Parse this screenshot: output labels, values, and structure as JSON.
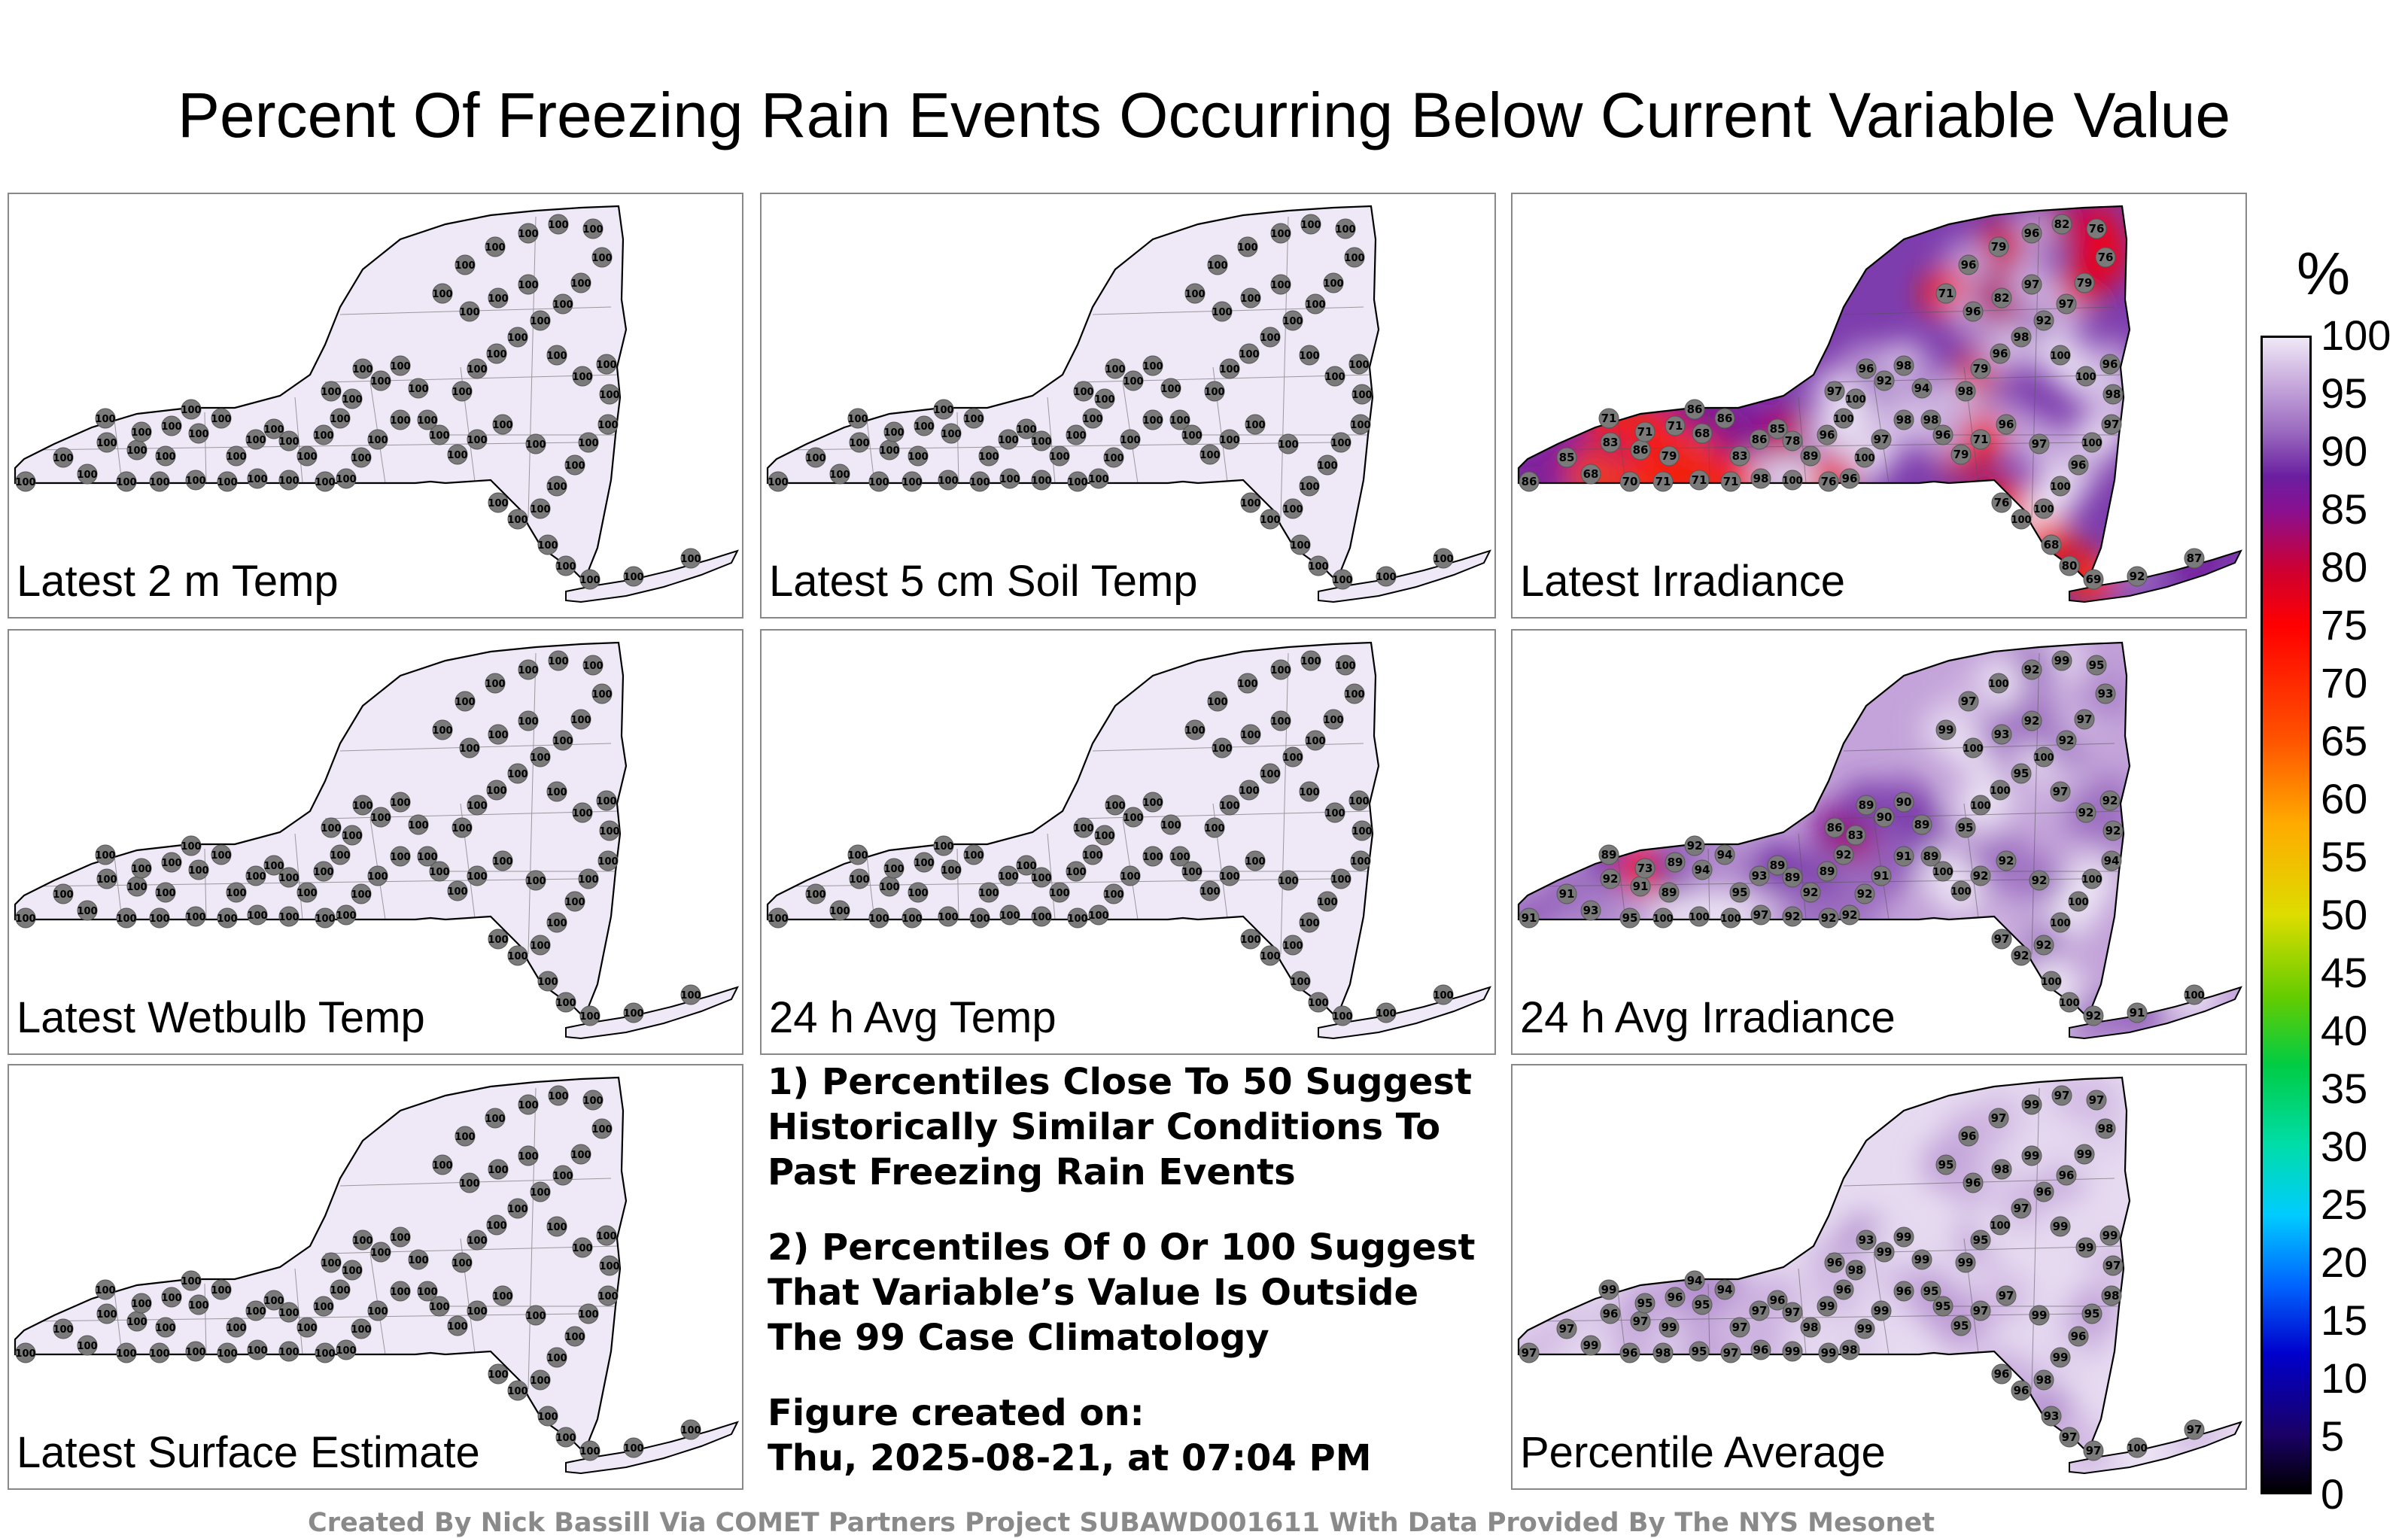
{
  "title": "Percent Of Freezing Rain Events Occurring Below Current Variable Value",
  "panels": [
    {
      "label": "Latest 2 m Temp",
      "shade": "uniform",
      "value": "100"
    },
    {
      "label": "Latest 5 cm Soil Temp",
      "shade": "uniform",
      "value": "100"
    },
    {
      "label": "Latest Irradiance",
      "shade": "irradiance",
      "values": [
        "86",
        "85",
        "83",
        "86",
        "79",
        "71",
        "71",
        "71",
        "68",
        "86",
        "86",
        "83",
        "86",
        "85",
        "78",
        "89",
        "96",
        "100",
        "97",
        "100",
        "96",
        "92",
        "98",
        "94",
        "98",
        "98",
        "97",
        "100",
        "96",
        "76",
        "100",
        "98",
        "71",
        "71",
        "71",
        "70",
        "68",
        "98",
        "79",
        "96",
        "98",
        "92",
        "97",
        "79",
        "76",
        "76",
        "82",
        "96",
        "79",
        "96",
        "71",
        "96",
        "82",
        "97",
        "100",
        "100",
        "96",
        "98",
        "97",
        "100",
        "96",
        "100",
        "100",
        "100",
        "76",
        "97",
        "96",
        "71",
        "79",
        "96",
        "68",
        "80",
        "69",
        "92",
        "87"
      ]
    },
    {
      "label": "Latest Wetbulb Temp",
      "shade": "uniform",
      "value": "100"
    },
    {
      "label": "24 h Avg Temp",
      "shade": "uniform",
      "value": "100"
    },
    {
      "label": "24 h Avg Irradiance",
      "shade": "avgirr",
      "values": [
        "91",
        "91",
        "92",
        "91",
        "89",
        "89",
        "73",
        "89",
        "94",
        "92",
        "94",
        "95",
        "93",
        "89",
        "89",
        "92",
        "89",
        "92",
        "86",
        "83",
        "89",
        "90",
        "90",
        "89",
        "89",
        "91",
        "91",
        "92",
        "92",
        "92",
        "92",
        "97",
        "100",
        "100",
        "100",
        "95",
        "93",
        "95",
        "100",
        "100",
        "95",
        "100",
        "92",
        "97",
        "93",
        "95",
        "99",
        "92",
        "100",
        "97",
        "99",
        "100",
        "93",
        "92",
        "97",
        "92",
        "92",
        "92",
        "94",
        "100",
        "100",
        "100",
        "92",
        "92",
        "97",
        "92",
        "92",
        "92",
        "100",
        "100",
        "100",
        "100",
        "92",
        "91",
        "100"
      ]
    },
    {
      "label": "Latest Surface Estimate",
      "shade": "uniform",
      "value": "100"
    },
    {
      "label": "Percentile Average",
      "shade": "average",
      "values": [
        "97",
        "97",
        "96",
        "97",
        "99",
        "99",
        "95",
        "96",
        "95",
        "94",
        "94",
        "97",
        "97",
        "96",
        "97",
        "98",
        "99",
        "96",
        "96",
        "98",
        "93",
        "99",
        "99",
        "99",
        "95",
        "96",
        "99",
        "99",
        "98",
        "99",
        "99",
        "96",
        "97",
        "95",
        "98",
        "96",
        "99",
        "99",
        "95",
        "100",
        "97",
        "96",
        "96",
        "99",
        "98",
        "97",
        "97",
        "99",
        "97",
        "96",
        "95",
        "96",
        "98",
        "99",
        "99",
        "99",
        "99",
        "97",
        "98",
        "95",
        "96",
        "99",
        "98",
        "96",
        "96",
        "99",
        "97",
        "97",
        "95",
        "95",
        "93",
        "97",
        "97",
        "100",
        "97"
      ]
    }
  ],
  "notes": {
    "note1": [
      "1) Percentiles Close To 50 Suggest",
      "Historically Similar Conditions To",
      "Past Freezing Rain Events"
    ],
    "note2": [
      "2) Percentiles Of 0 Or 100 Suggest",
      "That Variable’s Value Is Outside",
      "The 99 Case Climatology"
    ],
    "created_label": "Figure created on:",
    "created_value": "Thu, 2025-08-21, at 07:04 PM"
  },
  "credit": "Created By Nick Bassill Via COMET Partners Project SUBAWD001611 With Data Provided By The NYS Mesonet",
  "colorbar": {
    "unit": "%",
    "min": 0,
    "max": 100,
    "ticks": [
      "100",
      "95",
      "90",
      "85",
      "80",
      "75",
      "70",
      "65",
      "60",
      "55",
      "50",
      "45",
      "40",
      "35",
      "30",
      "25",
      "20",
      "15",
      "10",
      "5",
      "0"
    ],
    "colors": [
      "#000000",
      "#1a0066",
      "#0000cc",
      "#0066ff",
      "#00ccff",
      "#00ddaa",
      "#00cc44",
      "#66cc00",
      "#dddd00",
      "#ffaa00",
      "#ff5500",
      "#ff0000",
      "#cc0033",
      "#8a1090",
      "#6a1fa0",
      "#9b6cc0",
      "#c7a9dc",
      "#efe8f6"
    ],
    "color_stops": [
      0,
      5,
      12,
      18,
      24,
      30,
      37,
      43,
      50,
      58,
      65,
      75,
      80,
      85,
      88,
      92,
      96,
      100
    ]
  }
}
